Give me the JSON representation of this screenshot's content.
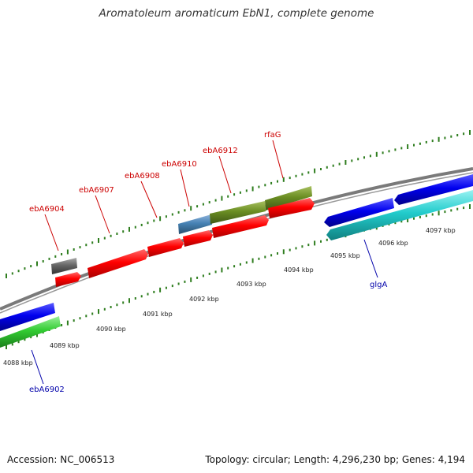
{
  "title": "Aromatoleum aromaticum EbN1, complete genome",
  "footer": {
    "accession": "Accession: NC_006513",
    "summary": "Topology: circular; Length: 4,296,230 bp; Genes: 4,194"
  },
  "colors": {
    "forward_label": "#cc0000",
    "reverse_label": "#0000aa",
    "backbone": "#7a7a7a",
    "tick": "#2e7d1e"
  },
  "ticks": [
    "4088 kbp",
    "4089 kbp",
    "4090 kbp",
    "4091 kbp",
    "4092 kbp",
    "4093 kbp",
    "4094 kbp",
    "4095 kbp",
    "4096 kbp",
    "4097 kbp"
  ],
  "gene_labels": [
    {
      "name": "ebA6904",
      "strand": "forward"
    },
    {
      "name": "ebA6907",
      "strand": "forward"
    },
    {
      "name": "ebA6908",
      "strand": "forward"
    },
    {
      "name": "ebA6910",
      "strand": "forward"
    },
    {
      "name": "ebA6912",
      "strand": "forward"
    },
    {
      "name": "rfaG",
      "strand": "forward"
    },
    {
      "name": "glgA",
      "strand": "reverse"
    },
    {
      "name": "ebA6902",
      "strand": "reverse"
    }
  ]
}
